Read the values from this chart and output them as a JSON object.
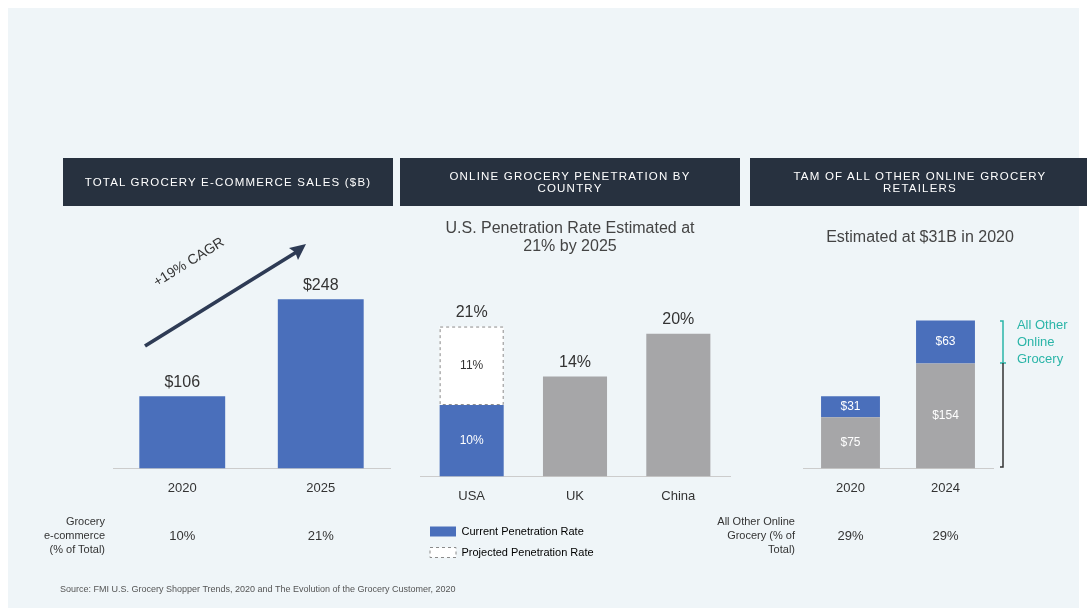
{
  "chart_data": [
    {
      "type": "bar",
      "title": "TOTAL GROCERY E-COMMERCE SALES ($B)",
      "categories": [
        "2020",
        "2025"
      ],
      "values": [
        106,
        248
      ],
      "color": "#4a6fbb",
      "value_labels": [
        "$106",
        "$248"
      ],
      "annotations": [
        "+19% CAGR",
        "Grocery e-commerce (% of Total)",
        "10%",
        "21%"
      ]
    },
    {
      "type": "bar",
      "title": "ONLINE GROCERY PENETRATION BY COUNTRY",
      "subtitle": "U.S. Penetration Rate Estimated at 21% by 2025",
      "categories": [
        "USA",
        "UK",
        "China"
      ],
      "stacked": true,
      "legend": "bottom",
      "series": [
        {
          "name": "Current Penetration Rate",
          "colors": [
            "#4a6fbb",
            "#a6a6a8",
            "#a6a6a8"
          ],
          "values": [
            10,
            14,
            20
          ],
          "value_labels": [
            "10%",
            null,
            null
          ]
        },
        {
          "name": "Projected Penetration Rate",
          "color": "#ffffff",
          "line_style": "dashed",
          "values": [
            11,
            null,
            null
          ],
          "value_labels": [
            "11%",
            null,
            null
          ]
        }
      ],
      "totals": [
        "21%",
        "14%",
        "20%"
      ]
    },
    {
      "type": "bar",
      "title": "TAM OF ALL OTHER ONLINE GROCERY RETAILERS",
      "subtitle": "Estimated at $31B in 2020",
      "categories": [
        "2020",
        "2024"
      ],
      "stacked": true,
      "legend": "right",
      "series": [
        {
          "color": "#a6a6a8",
          "values": [
            75,
            154
          ],
          "value_labels": [
            "$75",
            "$154"
          ]
        },
        {
          "name": "All Other Online Grocery",
          "color": "#4a6fbb",
          "values": [
            31,
            63
          ],
          "value_labels": [
            "$31",
            "$63"
          ]
        }
      ],
      "annotations": [
        "All Other Online Grocery (% of Total)",
        "29%",
        "29%",
        "Source: FMI U.S. Grocery Shopper Trends, 2020 and The Evolution of the Grocery Customer, 2020"
      ]
    }
  ]
}
